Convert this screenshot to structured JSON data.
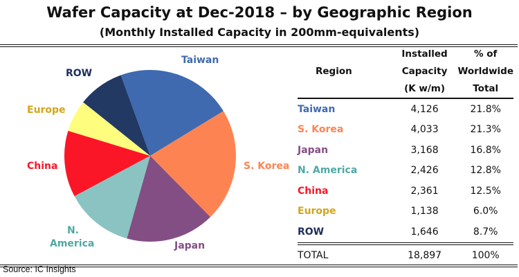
{
  "chart_data": {
    "type": "pie",
    "title": "Wafer Capacity at Dec-2018 – by Geographic Region",
    "subtitle": "(Monthly Installed Capacity in 200mm-equivalents)",
    "series": [
      {
        "name": "Taiwan",
        "label": "Taiwan",
        "value": 4126,
        "percent": "21.8%",
        "capacity": "4,126",
        "color": "#3f6aaf",
        "text_color": "#3f6aaf"
      },
      {
        "name": "S. Korea",
        "label": "S. Korea",
        "value": 4033,
        "percent": "21.3%",
        "capacity": "4,033",
        "color": "#fd8452",
        "text_color": "#fd8452"
      },
      {
        "name": "Japan",
        "label": "Japan",
        "value": 3168,
        "percent": "16.8%",
        "capacity": "3,168",
        "color": "#834e84",
        "text_color": "#834e84"
      },
      {
        "name": "N. America",
        "label": "N. America",
        "value": 2426,
        "percent": "12.8%",
        "capacity": "2,426",
        "color": "#8ac3c1",
        "text_color": "#4fa8a3"
      },
      {
        "name": "China",
        "label": "China",
        "value": 2361,
        "percent": "12.5%",
        "capacity": "2,361",
        "color": "#fb1627",
        "text_color": "#fb1627"
      },
      {
        "name": "Europe",
        "label": "Europe",
        "value": 1138,
        "percent": "6.0%",
        "capacity": "1,138",
        "color": "#fefd7e",
        "text_color": "#d3a51c"
      },
      {
        "name": "ROW",
        "label": "ROW",
        "value": 1646,
        "percent": "8.7%",
        "capacity": "1,646",
        "color": "#213963",
        "text_color": "#1d2f5c"
      }
    ],
    "pie_labels": {
      "n_america_line1": "N.",
      "n_america_line2": "America"
    },
    "table": {
      "headers": {
        "region": "Region",
        "capacity": [
          "Installed",
          "Capacity",
          "(K w/m)"
        ],
        "percent": [
          "% of",
          "Worldwide",
          "Total"
        ]
      },
      "total": {
        "label": "TOTAL",
        "capacity": "18,897",
        "percent": "100%"
      }
    }
  },
  "source": "Source:  IC Insights"
}
